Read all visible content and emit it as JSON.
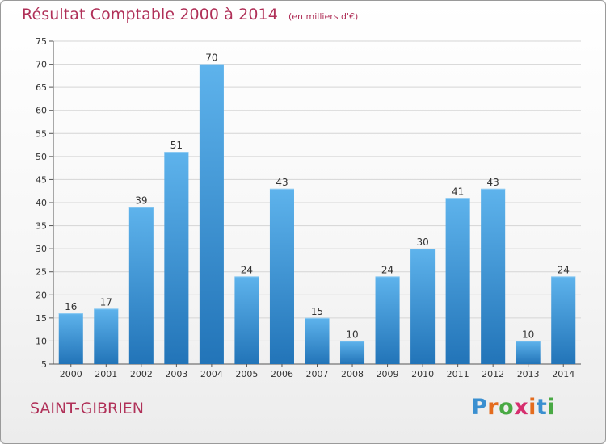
{
  "title": "Résultat Comptable 2000 à 2014",
  "subtitle": "(en milliers d'€)",
  "place": "SAINT-GIBRIEN",
  "logo": {
    "text": "Proxiti",
    "letters": [
      "P",
      "r",
      "o",
      "x",
      "i",
      "t",
      "i"
    ],
    "colors": [
      "#3a8fd0",
      "#e46c1e",
      "#49a944",
      "#d62e6e",
      "#e46c1e",
      "#3a8fd0",
      "#49a944"
    ]
  },
  "colors": {
    "bar_top": "#5eb3ec",
    "bar_bottom": "#2274b8",
    "grid": "#d5d5d5",
    "axis": "#555555",
    "title": "#b03058"
  },
  "chart_data": {
    "type": "bar",
    "title": "Résultat Comptable 2000 à 2014",
    "subtitle": "(en milliers d'€)",
    "categories": [
      "2000",
      "2001",
      "2002",
      "2003",
      "2004",
      "2005",
      "2006",
      "2007",
      "2008",
      "2009",
      "2010",
      "2011",
      "2012",
      "2013",
      "2014"
    ],
    "values": [
      16,
      17,
      39,
      51,
      70,
      24,
      43,
      15,
      10,
      24,
      30,
      41,
      43,
      10,
      24
    ],
    "ylim": [
      5,
      75
    ],
    "yticks": [
      5,
      10,
      15,
      20,
      25,
      30,
      35,
      40,
      45,
      50,
      55,
      60,
      65,
      70,
      75
    ],
    "grid": true,
    "xlabel": "",
    "ylabel": ""
  }
}
